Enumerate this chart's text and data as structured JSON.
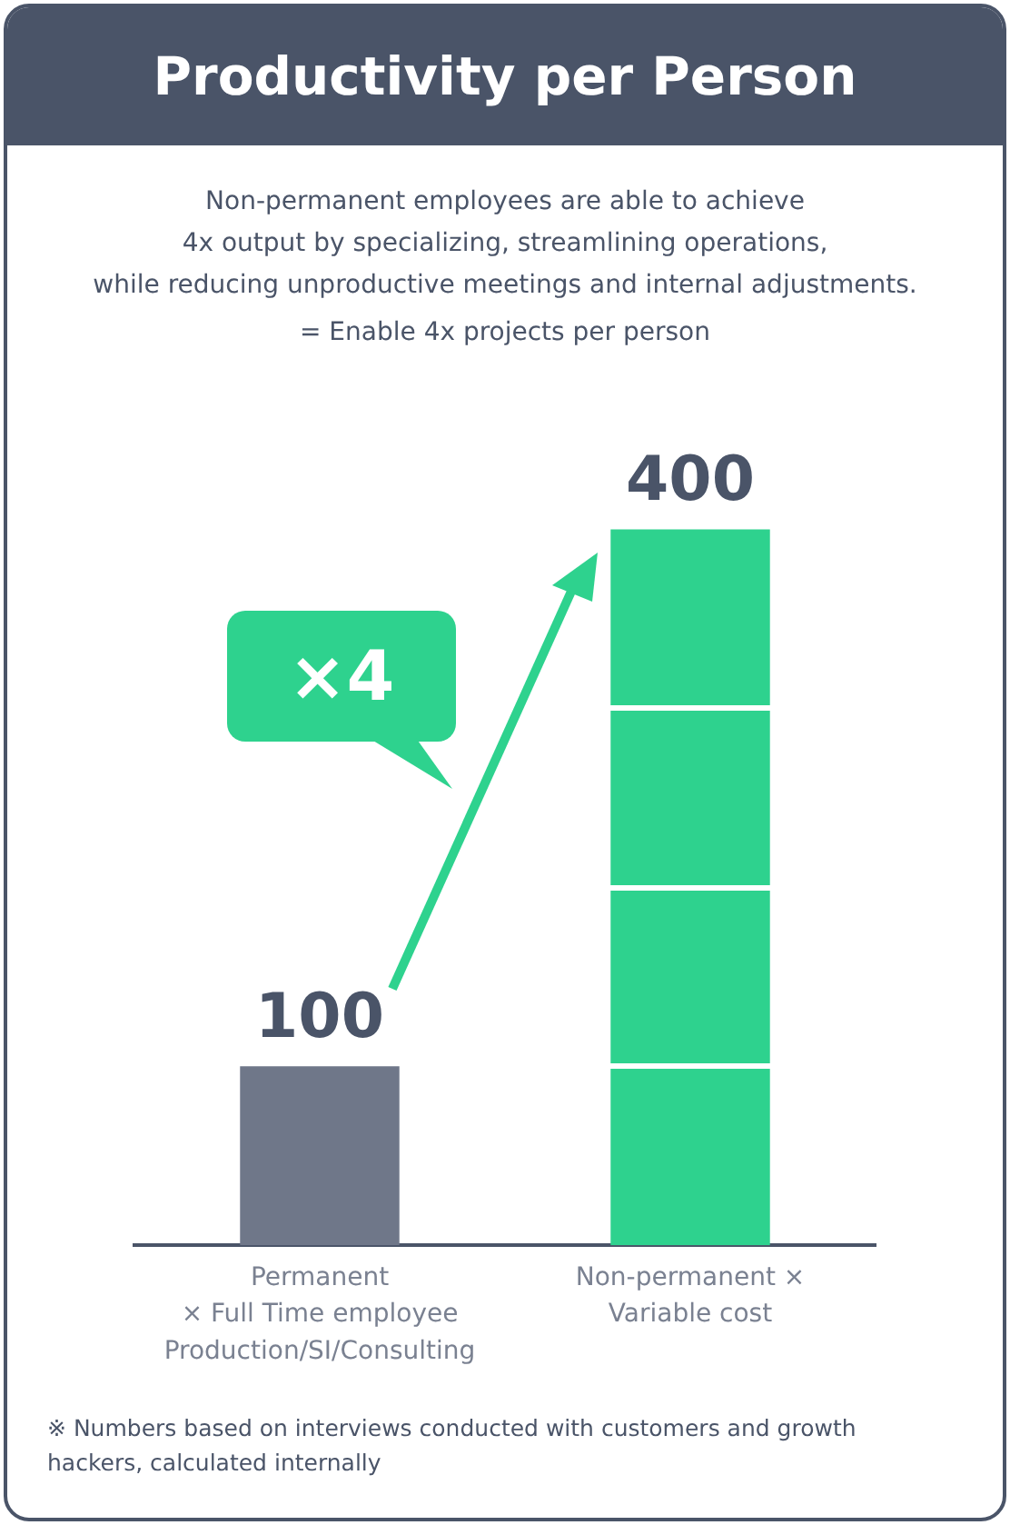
{
  "chart_data": {
    "type": "bar",
    "title": "Productivity per Person",
    "subtitle": "Non-permanent employees are able to achieve\n4x output by specializing, streamlining operations,\nwhile reducing unproductive meetings and internal adjustments.",
    "categories": [
      "Permanent\n× Full Time employee\nProduction/SI/Consulting",
      "Non-permanent ×\nVariable cost"
    ],
    "values": [
      100,
      400
    ],
    "colors": [
      "#6f7789",
      "#2ed28e"
    ],
    "data_labels": true,
    "annotations": [
      "= Enable 4x projects per person",
      "×4",
      "※ Numbers based on interviews conducted with customers and growth hackers, calculated internally"
    ],
    "grid": false,
    "legend": false
  }
}
